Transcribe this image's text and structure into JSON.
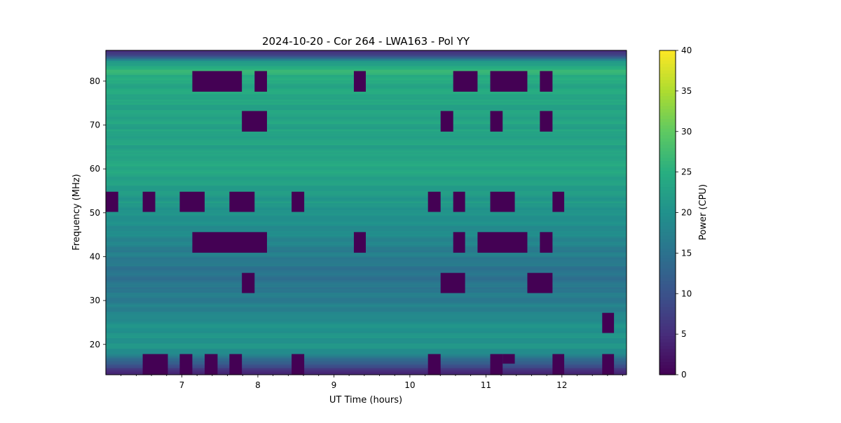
{
  "chart_data": {
    "type": "heatmap",
    "title": "2024-10-20 - Cor 264 - LWA163 - Pol YY",
    "xlabel": "UT Time (hours)",
    "ylabel": "Frequency (MHz)",
    "xlim": [
      6.0,
      12.85
    ],
    "ylim": [
      13.1,
      87.0
    ],
    "xticks": [
      7,
      8,
      9,
      10,
      11,
      12
    ],
    "yticks": [
      20,
      30,
      40,
      50,
      60,
      70,
      80
    ],
    "colorbar": {
      "label": "Power (CPU)",
      "range": [
        0,
        40
      ],
      "ticks": [
        0,
        5,
        10,
        15,
        20,
        25,
        30,
        35,
        40
      ],
      "colormap": "viridis"
    },
    "background_profile": [
      [
        13.1,
        4
      ],
      [
        14.5,
        7
      ],
      [
        16,
        12
      ],
      [
        17.5,
        17
      ],
      [
        19,
        20
      ],
      [
        22,
        21
      ],
      [
        26,
        19
      ],
      [
        30,
        17
      ],
      [
        35,
        15
      ],
      [
        40,
        16.5
      ],
      [
        45,
        19
      ],
      [
        50,
        20.5
      ],
      [
        55,
        22
      ],
      [
        60,
        24
      ],
      [
        65,
        23
      ],
      [
        70,
        23
      ],
      [
        75,
        23.5
      ],
      [
        80,
        24
      ],
      [
        83,
        26
      ],
      [
        84.5,
        21
      ],
      [
        85.5,
        13
      ],
      [
        86.3,
        7
      ],
      [
        87,
        4
      ]
    ],
    "flagged_blocks": [
      {
        "t": [
          7.138,
          7.79
        ],
        "f": [
          77.6,
          82.3
        ]
      },
      {
        "t": [
          7.957,
          8.12
        ],
        "f": [
          77.6,
          82.3
        ]
      },
      {
        "t": [
          9.263,
          9.42
        ],
        "f": [
          77.6,
          82.3
        ]
      },
      {
        "t": [
          10.57,
          10.89
        ],
        "f": [
          77.6,
          82.3
        ]
      },
      {
        "t": [
          11.057,
          11.545
        ],
        "f": [
          77.6,
          82.3
        ]
      },
      {
        "t": [
          11.71,
          11.876
        ],
        "f": [
          77.6,
          82.3
        ]
      },
      {
        "t": [
          7.79,
          8.12
        ],
        "f": [
          68.5,
          73.2
        ]
      },
      {
        "t": [
          10.404,
          10.57
        ],
        "f": [
          68.5,
          73.2
        ]
      },
      {
        "t": [
          11.057,
          11.22
        ],
        "f": [
          68.5,
          73.2
        ]
      },
      {
        "t": [
          11.71,
          11.876
        ],
        "f": [
          68.5,
          73.2
        ]
      },
      {
        "t": [
          6.0,
          6.163
        ],
        "f": [
          50.2,
          54.8
        ]
      },
      {
        "t": [
          6.485,
          6.65
        ],
        "f": [
          50.2,
          54.8
        ]
      },
      {
        "t": [
          6.972,
          7.3
        ],
        "f": [
          50.2,
          54.8
        ]
      },
      {
        "t": [
          7.626,
          7.957
        ],
        "f": [
          50.2,
          54.8
        ]
      },
      {
        "t": [
          8.444,
          8.61
        ],
        "f": [
          50.2,
          54.8
        ]
      },
      {
        "t": [
          10.238,
          10.404
        ],
        "f": [
          50.2,
          54.8
        ]
      },
      {
        "t": [
          10.57,
          10.726
        ],
        "f": [
          50.2,
          54.8
        ]
      },
      {
        "t": [
          11.057,
          11.38
        ],
        "f": [
          50.2,
          54.8
        ]
      },
      {
        "t": [
          11.876,
          12.03
        ],
        "f": [
          50.2,
          54.8
        ]
      },
      {
        "t": [
          7.138,
          8.12
        ],
        "f": [
          40.9,
          45.6
        ]
      },
      {
        "t": [
          9.263,
          9.42
        ],
        "f": [
          40.9,
          45.6
        ]
      },
      {
        "t": [
          10.57,
          10.726
        ],
        "f": [
          40.9,
          45.6
        ]
      },
      {
        "t": [
          10.89,
          11.545
        ],
        "f": [
          40.9,
          45.6
        ]
      },
      {
        "t": [
          11.71,
          11.876
        ],
        "f": [
          40.9,
          45.6
        ]
      },
      {
        "t": [
          7.79,
          7.957
        ],
        "f": [
          31.7,
          36.3
        ]
      },
      {
        "t": [
          10.404,
          10.726
        ],
        "f": [
          31.7,
          36.3
        ]
      },
      {
        "t": [
          11.545,
          11.876
        ],
        "f": [
          31.7,
          36.3
        ]
      },
      {
        "t": [
          12.53,
          12.685
        ],
        "f": [
          22.6,
          27.2
        ]
      },
      {
        "t": [
          6.485,
          6.816
        ],
        "f": [
          13.1,
          17.8
        ]
      },
      {
        "t": [
          6.972,
          7.138
        ],
        "f": [
          13.1,
          17.8
        ]
      },
      {
        "t": [
          7.3,
          7.47
        ],
        "f": [
          13.1,
          17.8
        ]
      },
      {
        "t": [
          7.626,
          7.79
        ],
        "f": [
          13.1,
          17.8
        ]
      },
      {
        "t": [
          8.444,
          8.61
        ],
        "f": [
          13.1,
          17.8
        ]
      },
      {
        "t": [
          10.238,
          10.404
        ],
        "f": [
          13.1,
          17.8
        ]
      },
      {
        "t": [
          11.057,
          11.22
        ],
        "f": [
          13.1,
          17.8
        ]
      },
      {
        "t": [
          11.22,
          11.38
        ],
        "f": [
          15.6,
          17.8
        ]
      },
      {
        "t": [
          11.876,
          12.03
        ],
        "f": [
          13.1,
          17.8
        ]
      },
      {
        "t": [
          12.53,
          12.685
        ],
        "f": [
          13.1,
          17.8
        ]
      }
    ]
  }
}
